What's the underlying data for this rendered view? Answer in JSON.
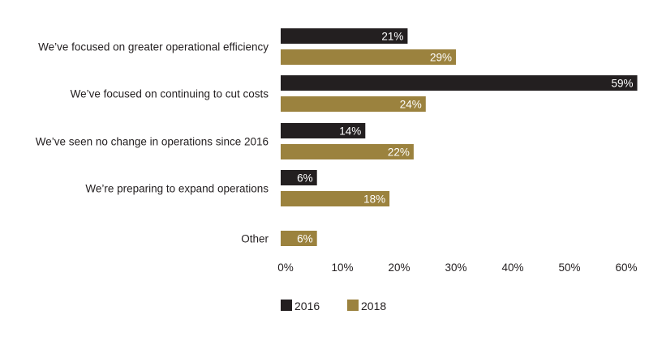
{
  "chart_data": {
    "type": "bar",
    "orientation": "horizontal",
    "categories": [
      "We’ve focused on greater operational efficiency",
      "We’ve focused on continuing to cut costs",
      "We’ve seen no change in operations since 2016",
      "We’re preparing to expand operations",
      "Other"
    ],
    "series": [
      {
        "name": "2016",
        "color": "#231f20",
        "values": [
          21,
          59,
          14,
          6,
          null
        ]
      },
      {
        "name": "2018",
        "color": "#9b823e",
        "values": [
          29,
          24,
          22,
          18,
          6
        ]
      }
    ],
    "xlim": [
      0,
      60
    ],
    "xticks": [
      "0%",
      "10%",
      "20%",
      "30%",
      "40%",
      "50%",
      "60%"
    ],
    "value_suffix": "%",
    "grid": false,
    "legend_position": "bottom-left"
  }
}
